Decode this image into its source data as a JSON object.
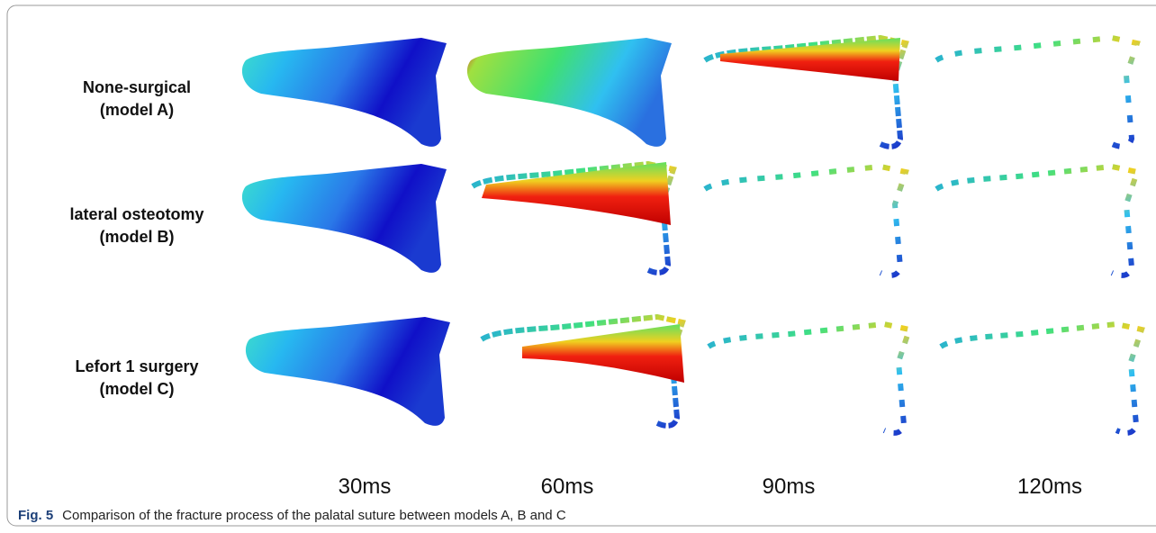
{
  "figure": {
    "rows": [
      {
        "label": [
          "None-surgical",
          "(model A)"
        ]
      },
      {
        "label": [
          "lateral osteotomy",
          "(model B)"
        ]
      },
      {
        "label": [
          "Lefort 1 surgery",
          "(model C)"
        ]
      }
    ],
    "times": [
      "30ms",
      "60ms",
      "90ms",
      "120ms"
    ],
    "caption": {
      "label": "Fig. 5",
      "text": "Comparison of the fracture process of the palatal suture between models A, B and C"
    }
  }
}
